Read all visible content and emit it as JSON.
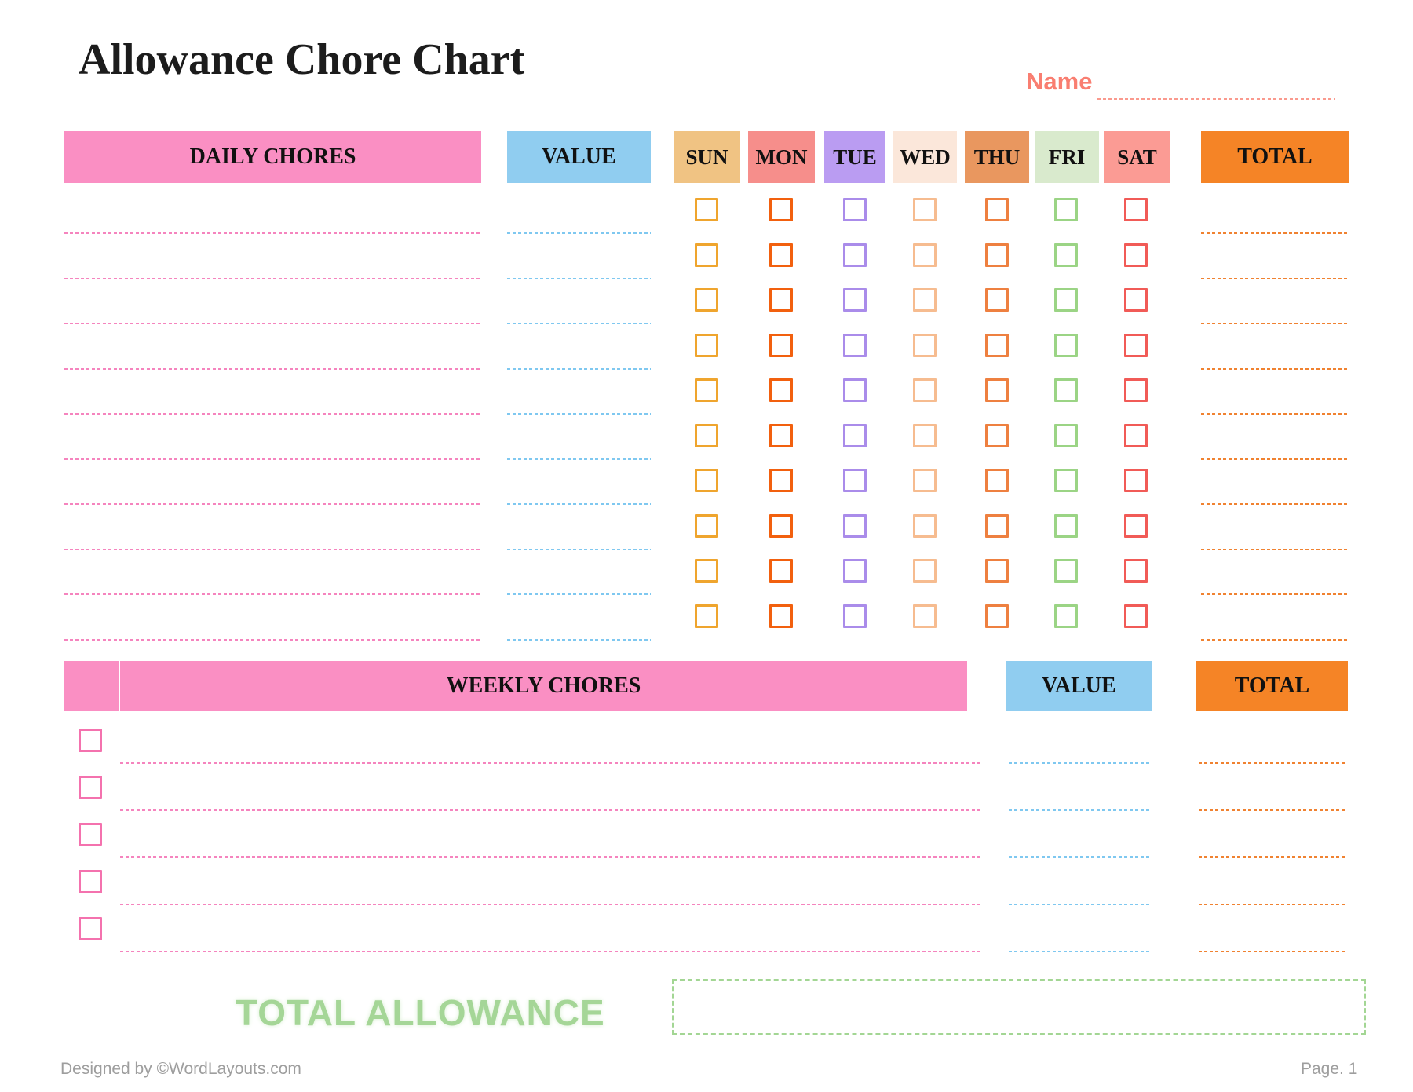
{
  "page": {
    "title": "Allowance Chore Chart",
    "name_label": "Name",
    "total_allowance_label": "TOTAL ALLOWANCE",
    "footer_credit": "Designed by ©WordLayouts.com",
    "footer_page": "Page. 1"
  },
  "daily": {
    "chores_header": "DAILY CHORES",
    "value_header": "VALUE",
    "total_header": "TOTAL",
    "rows": 10,
    "days": [
      {
        "label": "SUN",
        "header_bg": "#f0c383",
        "box_border": "#efa52e"
      },
      {
        "label": "MON",
        "header_bg": "#f68e8b",
        "box_border": "#f2600e"
      },
      {
        "label": "TUE",
        "header_bg": "#ba9cf2",
        "box_border": "#aa8cea"
      },
      {
        "label": "WED",
        "header_bg": "#fbe7da",
        "box_border": "#f6bc90"
      },
      {
        "label": "THU",
        "header_bg": "#e9975f",
        "box_border": "#ee8040"
      },
      {
        "label": "FRI",
        "header_bg": "#d9eacd",
        "box_border": "#9bd485"
      },
      {
        "label": "SAT",
        "header_bg": "#fb9b94",
        "box_border": "#f15b57"
      }
    ]
  },
  "weekly": {
    "chores_header": "WEEKLY CHORES",
    "value_header": "VALUE",
    "total_header": "TOTAL",
    "rows": 5
  },
  "palette": {
    "pink_band": "#fa8fc3",
    "blue_band": "#90cdf0",
    "orange_band": "#f58426",
    "pink_line": "#f584be",
    "blue_line": "#7fc8f0",
    "orange_line": "#f08231",
    "weekly_box_border": "#f472ae",
    "name_color": "#f97e71",
    "name_line_color": "#fa9a8e",
    "allowance_green": "#a5d697",
    "allowance_box_border": "#a3d694",
    "footer_gray": "#9e9e9e",
    "title_color": "#1c1c1c"
  }
}
